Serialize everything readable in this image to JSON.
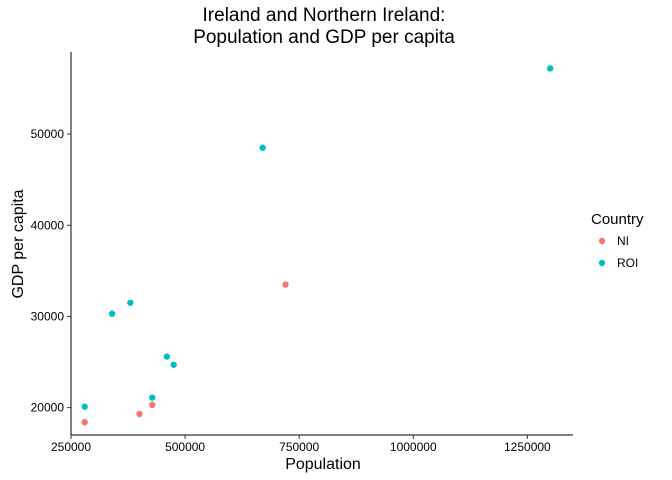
{
  "chart_data": {
    "type": "scatter",
    "title_lines": [
      "Ireland and Northern Ireland:",
      "Population and GDP per capita"
    ],
    "xlabel": "Population",
    "ylabel": "GDP per capita",
    "xlim": [
      250000,
      1350000
    ],
    "ylim": [
      17000,
      59000
    ],
    "x_ticks": [
      250000,
      500000,
      750000,
      1000000,
      1250000
    ],
    "x_tick_labels": [
      "250000",
      "500000",
      "750000",
      "1000000",
      "1250000"
    ],
    "y_ticks": [
      20000,
      30000,
      40000,
      50000
    ],
    "y_tick_labels": [
      "20000",
      "30000",
      "40000",
      "50000"
    ],
    "grid": false,
    "legend": {
      "title": "Country",
      "placement": "right"
    },
    "series": [
      {
        "name": "NI",
        "color": "#F8766D",
        "points": [
          {
            "x": 280000,
            "y": 18400
          },
          {
            "x": 400000,
            "y": 19300
          },
          {
            "x": 428000,
            "y": 20300
          },
          {
            "x": 720000,
            "y": 33500
          }
        ]
      },
      {
        "name": "ROI",
        "color": "#00BFC4",
        "points": [
          {
            "x": 280000,
            "y": 20100
          },
          {
            "x": 340000,
            "y": 30300
          },
          {
            "x": 380000,
            "y": 31500
          },
          {
            "x": 428000,
            "y": 21100
          },
          {
            "x": 460000,
            "y": 25600
          },
          {
            "x": 475000,
            "y": 24700
          },
          {
            "x": 670000,
            "y": 48500
          },
          {
            "x": 1300000,
            "y": 57200
          }
        ]
      }
    ]
  }
}
